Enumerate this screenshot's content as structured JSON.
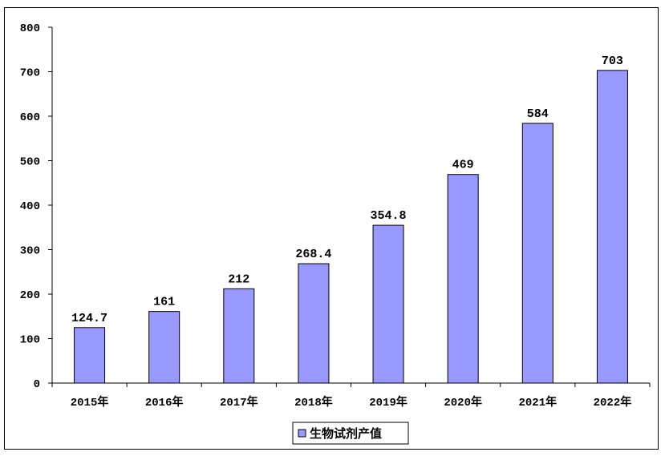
{
  "chart_data": {
    "type": "bar",
    "categories": [
      "2015年",
      "2016年",
      "2017年",
      "2018年",
      "2019年",
      "2020年",
      "2021年",
      "2022年"
    ],
    "series": [
      {
        "name": "生物试剂产值",
        "values": [
          124.7,
          161,
          212,
          268.4,
          354.8,
          469,
          584,
          703
        ],
        "labels": [
          "124.7",
          "161",
          "212",
          "268.4",
          "354.8",
          "469",
          "584",
          "703"
        ],
        "color": "#9999ff"
      }
    ],
    "ylim": [
      0,
      800
    ],
    "yticks": [
      0,
      100,
      200,
      300,
      400,
      500,
      600,
      700,
      800
    ],
    "grid": false,
    "legend": "bottom-center",
    "title": "",
    "xlabel": "",
    "ylabel": ""
  }
}
